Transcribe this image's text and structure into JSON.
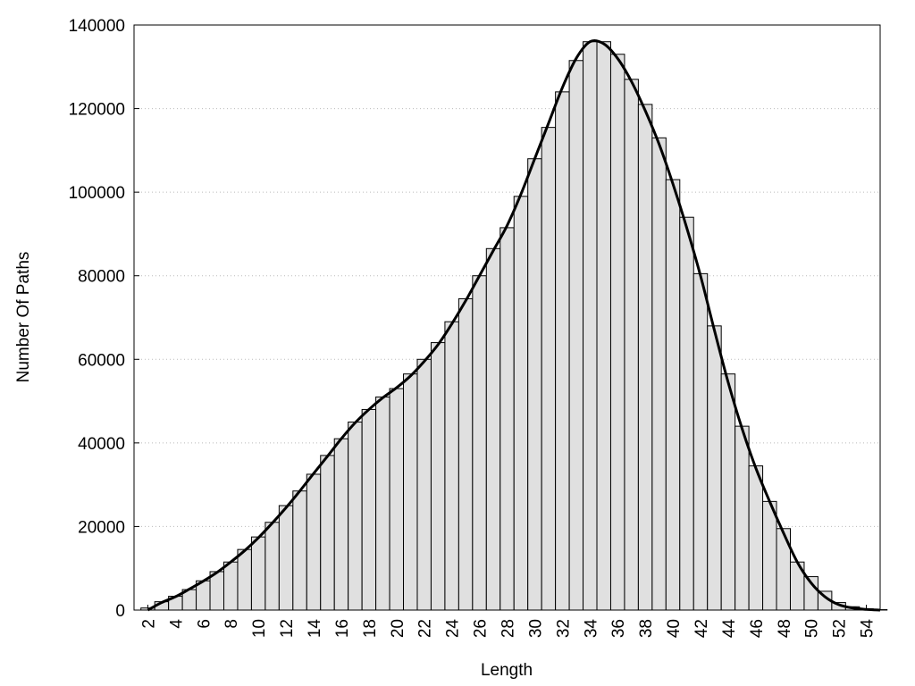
{
  "chart_data": {
    "type": "bar",
    "x_label": "Length",
    "y_label": "Number Of Paths",
    "x": [
      2,
      3,
      4,
      5,
      6,
      7,
      8,
      9,
      10,
      11,
      12,
      13,
      14,
      15,
      16,
      17,
      18,
      19,
      20,
      21,
      22,
      23,
      24,
      25,
      26,
      27,
      28,
      29,
      30,
      31,
      32,
      33,
      34,
      35,
      36,
      37,
      38,
      39,
      40,
      41,
      42,
      43,
      44,
      45,
      46,
      47,
      48,
      49,
      50,
      51,
      52,
      53,
      54,
      55
    ],
    "series": [
      {
        "type": "bar",
        "color": "#e0e0e0",
        "values": [
          500,
          2000,
          3300,
          4900,
          7000,
          9200,
          11500,
          14500,
          17500,
          21000,
          25000,
          28500,
          32500,
          37000,
          41000,
          45000,
          48000,
          51000,
          53000,
          56500,
          60000,
          64000,
          69000,
          74500,
          80000,
          86500,
          91500,
          99000,
          108000,
          115500,
          124000,
          131500,
          136000,
          136000,
          133000,
          127000,
          121000,
          113000,
          103000,
          94000,
          80500,
          68000,
          56500,
          44000,
          34500,
          26000,
          19500,
          11500,
          8000,
          4500,
          1800,
          800,
          300,
          100
        ]
      },
      {
        "type": "line",
        "color": "#000000",
        "values": [
          0,
          1800,
          3200,
          5000,
          6900,
          9000,
          11500,
          14200,
          17300,
          20800,
          24500,
          28500,
          32700,
          36800,
          41000,
          44800,
          48000,
          50800,
          53200,
          56000,
          59500,
          63500,
          68500,
          74000,
          80000,
          86000,
          92000,
          99500,
          108000,
          116500,
          125000,
          132000,
          136000,
          135500,
          132000,
          126500,
          119500,
          111500,
          102000,
          91500,
          80000,
          67000,
          54500,
          43500,
          34000,
          26000,
          18500,
          11500,
          6500,
          3200,
          1300,
          500,
          150,
          0
        ]
      }
    ],
    "xlim": [
      1,
      55
    ],
    "ylim": [
      0,
      140000
    ],
    "xticks": [
      2,
      4,
      6,
      8,
      10,
      12,
      14,
      16,
      18,
      20,
      22,
      24,
      26,
      28,
      30,
      32,
      34,
      36,
      38,
      40,
      42,
      44,
      46,
      48,
      50,
      52,
      54
    ],
    "yticks": [
      0,
      20000,
      40000,
      60000,
      80000,
      100000,
      120000,
      140000
    ],
    "grid": true
  }
}
